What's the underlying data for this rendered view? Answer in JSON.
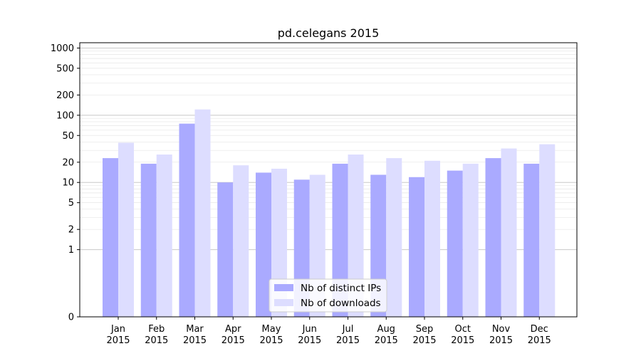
{
  "chart_data": {
    "type": "bar",
    "title": "pd.celegans 2015",
    "categories": [
      "Jan 2015",
      "Feb 2015",
      "Mar 2015",
      "Apr 2015",
      "May 2015",
      "Jun 2015",
      "Jul 2015",
      "Aug 2015",
      "Sep 2015",
      "Oct 2015",
      "Nov 2015",
      "Dec 2015"
    ],
    "tick_lines": [
      [
        "Jan",
        "2015"
      ],
      [
        "Feb",
        "2015"
      ],
      [
        "Mar",
        "2015"
      ],
      [
        "Apr",
        "2015"
      ],
      [
        "May",
        "2015"
      ],
      [
        "Jun",
        "2015"
      ],
      [
        "Jul",
        "2015"
      ],
      [
        "Aug",
        "2015"
      ],
      [
        "Sep",
        "2015"
      ],
      [
        "Oct",
        "2015"
      ],
      [
        "Nov",
        "2015"
      ],
      [
        "Dec",
        "2015"
      ]
    ],
    "series": [
      {
        "name": "Nb of distinct IPs",
        "color": "#aaaaff",
        "values": [
          23,
          19,
          75,
          10,
          14,
          11,
          19,
          13,
          12,
          15,
          23,
          19
        ]
      },
      {
        "name": "Nb of downloads",
        "color": "#ddddff",
        "values": [
          39,
          26,
          122,
          18,
          16,
          13,
          26,
          23,
          21,
          19,
          32,
          37
        ]
      }
    ],
    "yscale": "symlog",
    "ylim": [
      0,
      1200
    ],
    "yticks": [
      0,
      1,
      2,
      5,
      10,
      20,
      50,
      100,
      200,
      500,
      1000
    ],
    "grid": true,
    "legend_position": "bottom-center",
    "xlabel": "",
    "ylabel": ""
  }
}
